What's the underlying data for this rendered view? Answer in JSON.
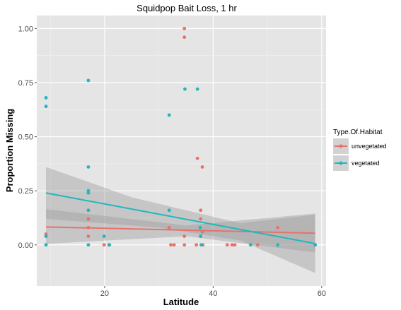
{
  "chart_data": {
    "type": "scatter",
    "title": "Squidpop Bait Loss, 1 hr",
    "xlabel": "Latitude",
    "ylabel": "Proportion Missing",
    "xlim": [
      7.5,
      60.8
    ],
    "ylim": [
      -0.19,
      1.06
    ],
    "x_ticks": [
      20,
      40,
      60
    ],
    "y_ticks": [
      0.0,
      0.25,
      0.5,
      0.75,
      1.0
    ],
    "x_tick_labels": [
      "20",
      "40",
      "60"
    ],
    "y_tick_labels": [
      "0.00",
      "0.25",
      "0.50",
      "0.75",
      "1.00"
    ],
    "grid": true,
    "legend": {
      "title": "Type.Of.Habitat",
      "position": "right",
      "entries": [
        "unvegetated",
        "vegetated"
      ]
    },
    "colors": {
      "unvegetated": "#e8716a",
      "vegetated": "#1fb8bd",
      "panel": "#e5e5e5",
      "ribbon": "#999999"
    },
    "series": [
      {
        "name": "unvegetated",
        "points": [
          [
            9.2,
            0.05
          ],
          [
            9.2,
            0.04
          ],
          [
            9.2,
            0.0
          ],
          [
            17.0,
            0.16
          ],
          [
            17.0,
            0.12
          ],
          [
            17.0,
            0.08
          ],
          [
            17.0,
            0.04
          ],
          [
            17.0,
            0.0
          ],
          [
            19.9,
            0.0
          ],
          [
            20.8,
            0.0
          ],
          [
            31.9,
            0.08
          ],
          [
            32.2,
            0.0
          ],
          [
            32.8,
            0.0
          ],
          [
            34.7,
            1.0
          ],
          [
            34.7,
            0.96
          ],
          [
            34.7,
            0.04
          ],
          [
            34.7,
            0.0
          ],
          [
            36.9,
            0.0
          ],
          [
            37.1,
            0.4
          ],
          [
            37.7,
            0.16
          ],
          [
            37.7,
            0.12
          ],
          [
            37.7,
            0.04
          ],
          [
            38.0,
            0.36
          ],
          [
            38.0,
            0.06
          ],
          [
            38.1,
            0.0
          ],
          [
            42.6,
            0.0
          ],
          [
            43.5,
            0.0
          ],
          [
            44.0,
            0.0
          ],
          [
            46.9,
            0.0
          ],
          [
            48.2,
            0.0
          ],
          [
            51.9,
            0.08
          ],
          [
            58.8,
            0.0
          ]
        ],
        "fit": [
          [
            9.2,
            0.083
          ],
          [
            58.8,
            0.054
          ]
        ],
        "fit_ci_lower": [
          [
            9.2,
            0.005
          ],
          [
            35.0,
            0.04
          ],
          [
            58.8,
            -0.035
          ]
        ],
        "fit_ci_upper": [
          [
            9.2,
            0.165
          ],
          [
            35.0,
            0.09
          ],
          [
            58.8,
            0.145
          ]
        ]
      },
      {
        "name": "vegetated",
        "points": [
          [
            9.2,
            0.68
          ],
          [
            9.2,
            0.64
          ],
          [
            9.2,
            0.04
          ],
          [
            9.2,
            0.0
          ],
          [
            17.0,
            0.76
          ],
          [
            17.0,
            0.36
          ],
          [
            17.0,
            0.25
          ],
          [
            17.0,
            0.24
          ],
          [
            17.0,
            0.16
          ],
          [
            17.0,
            0.0
          ],
          [
            19.9,
            0.04
          ],
          [
            20.9,
            0.0
          ],
          [
            31.9,
            0.6
          ],
          [
            31.9,
            0.16
          ],
          [
            34.8,
            0.72
          ],
          [
            37.1,
            0.72
          ],
          [
            37.6,
            0.08
          ],
          [
            37.7,
            0.04
          ],
          [
            37.8,
            0.0
          ],
          [
            46.9,
            0.0
          ],
          [
            51.9,
            0.0
          ],
          [
            58.8,
            0.0
          ]
        ],
        "fit": [
          [
            9.2,
            0.24
          ],
          [
            58.8,
            0.006
          ]
        ],
        "fit_ci_lower": [
          [
            9.2,
            0.12
          ],
          [
            30.0,
            0.08
          ],
          [
            45.0,
            0.02
          ],
          [
            58.8,
            -0.13
          ]
        ],
        "fit_ci_upper": [
          [
            9.2,
            0.36
          ],
          [
            25.0,
            0.22
          ],
          [
            45.0,
            0.1
          ],
          [
            58.8,
            0.14
          ]
        ]
      }
    ]
  }
}
